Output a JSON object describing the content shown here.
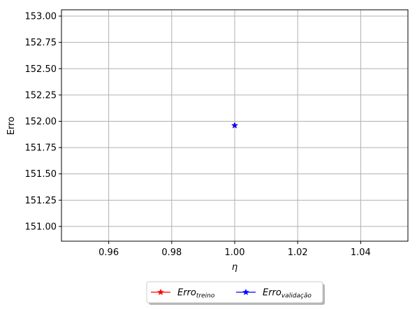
{
  "chart_data": {
    "type": "scatter",
    "xlabel": "η",
    "ylabel": "Erro",
    "xlim": [
      0.945,
      1.055
    ],
    "ylim": [
      150.86,
      153.06
    ],
    "xticks": [
      0.96,
      0.98,
      1.0,
      1.02,
      1.04
    ],
    "xtick_labels": [
      "0.96",
      "0.98",
      "1.00",
      "1.02",
      "1.04"
    ],
    "yticks": [
      151.0,
      151.25,
      151.5,
      151.75,
      152.0,
      152.25,
      152.5,
      152.75,
      153.0
    ],
    "ytick_labels": [
      "151.00",
      "151.25",
      "151.50",
      "151.75",
      "152.00",
      "152.25",
      "152.50",
      "152.75",
      "153.00"
    ],
    "grid": true,
    "legend_position": "bottom-center outside",
    "series": [
      {
        "name_base": "Erro",
        "name_sub": "treino",
        "color": "#ff0000",
        "marker": "star",
        "x": [
          1.0
        ],
        "y": [
          151.96
        ]
      },
      {
        "name_base": "Erro",
        "name_sub": "validação",
        "color": "#0000ff",
        "marker": "star",
        "x": [
          1.0
        ],
        "y": [
          151.96
        ]
      }
    ]
  }
}
